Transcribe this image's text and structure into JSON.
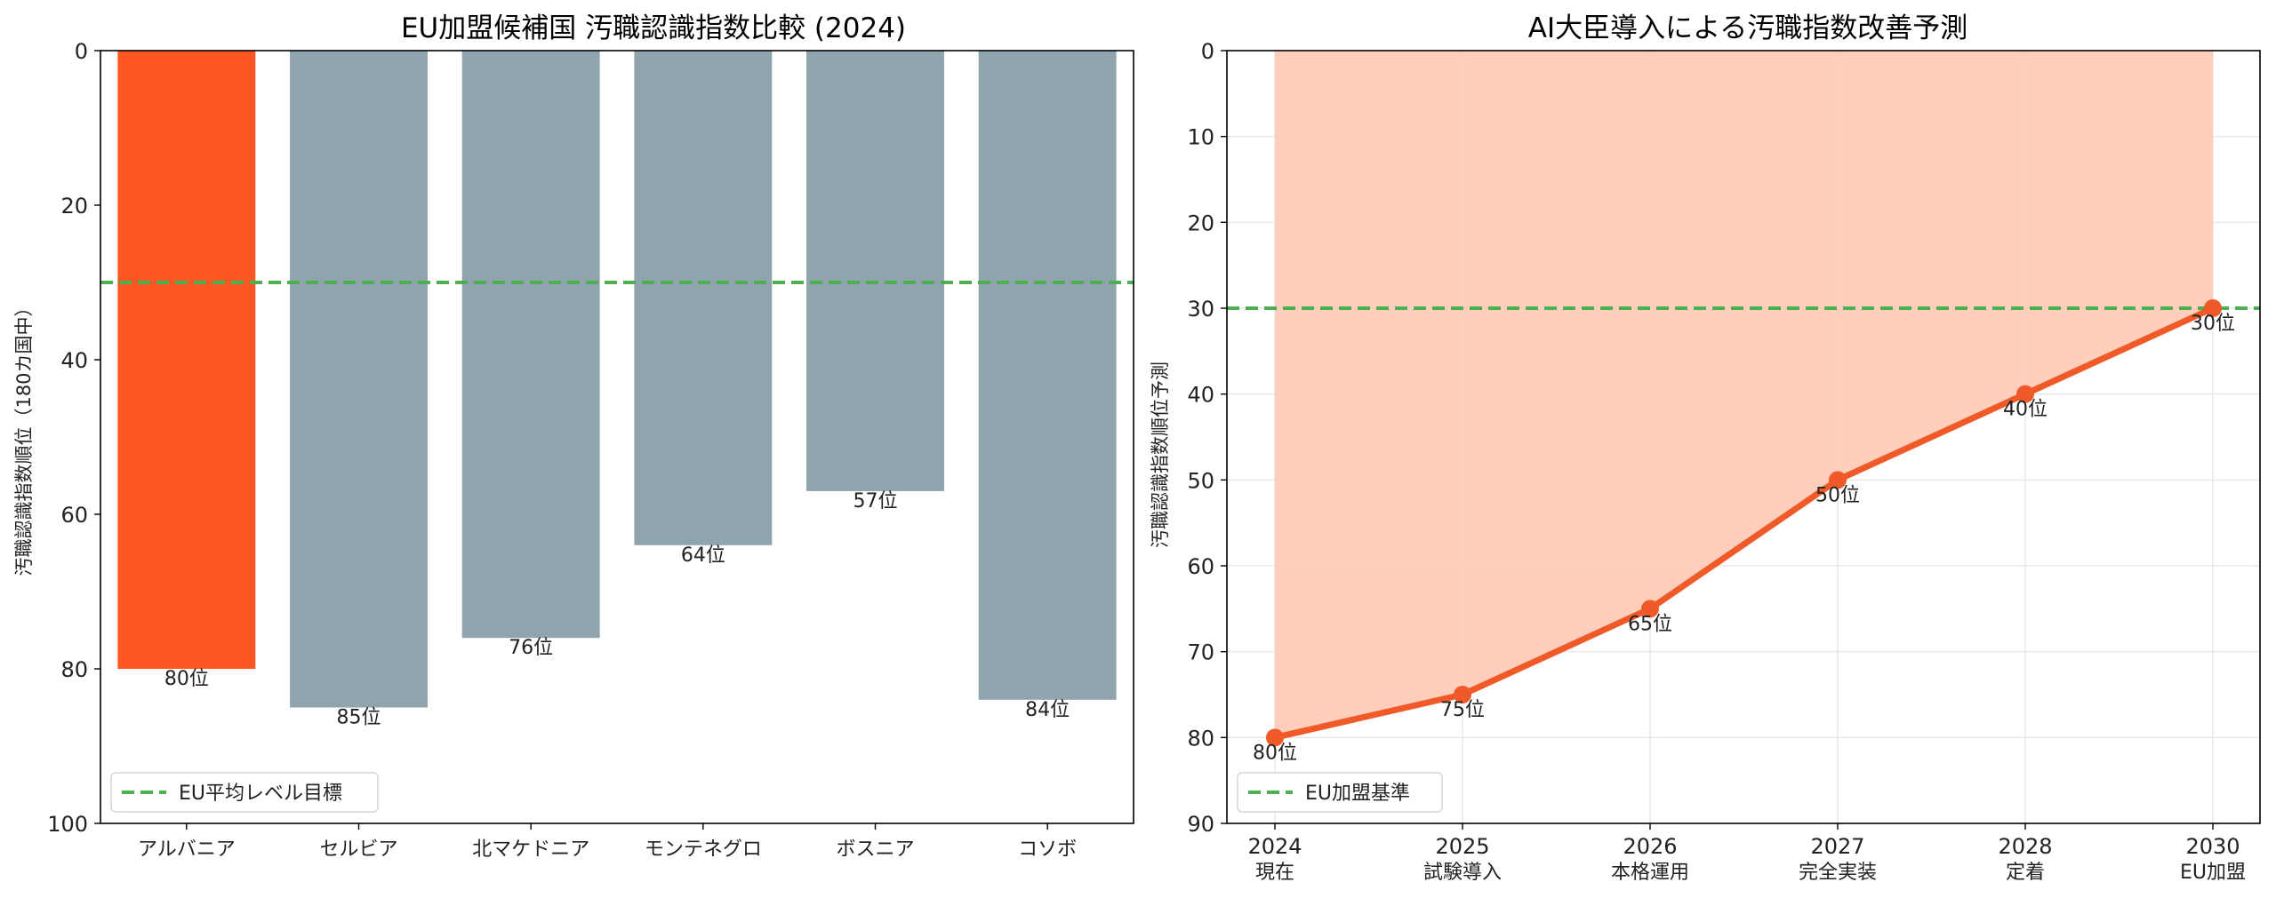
{
  "colors": {
    "highlight": "#FF5722",
    "bar": "#90A4AE",
    "target": "#4CAF50",
    "line": "#F05A28",
    "fill": "#FFCBB9"
  },
  "chart_data": [
    {
      "type": "bar",
      "title": "EU加盟候補国 汚職認識指数比較 (2024)",
      "ylabel": "汚職認識指数順位（180カ国中）",
      "xlabel": "",
      "ylim": [
        100,
        0
      ],
      "y_inverted": true,
      "yticks": [
        0,
        20,
        40,
        60,
        80,
        100
      ],
      "categories": [
        "アルバニア",
        "セルビア",
        "北マケドニア",
        "モンテネグロ",
        "ボスニア",
        "コソボ"
      ],
      "values": [
        80,
        85,
        76,
        64,
        57,
        84
      ],
      "data_labels": [
        "80位",
        "85位",
        "76位",
        "64位",
        "57位",
        "84位"
      ],
      "highlight_index": 0,
      "reference_line": {
        "value": 30,
        "label": "EU平均レベル目標",
        "style": "dashed"
      },
      "legend": {
        "position": "lower-left",
        "entries": [
          "EU平均レベル目標"
        ]
      },
      "grid": false
    },
    {
      "type": "line",
      "title": "AI大臣導入による汚職指数改善予測",
      "ylabel": "汚職認識指数順位予測",
      "xlabel": "",
      "ylim": [
        90,
        0
      ],
      "y_inverted": true,
      "yticks": [
        0,
        10,
        20,
        30,
        40,
        50,
        60,
        70,
        80,
        90
      ],
      "x": [
        "2024",
        "2025",
        "2026",
        "2027",
        "2028",
        "2030"
      ],
      "x_sublabels": [
        "現在",
        "試験導入",
        "本格運用",
        "完全実装",
        "定着",
        "EU加盟"
      ],
      "values": [
        80,
        75,
        65,
        50,
        40,
        30
      ],
      "data_labels": [
        "80位",
        "75位",
        "65位",
        "50位",
        "40位",
        "30位"
      ],
      "area_fill": true,
      "reference_line": {
        "value": 30,
        "label": "EU加盟基準",
        "style": "dashed"
      },
      "legend": {
        "position": "lower-left",
        "entries": [
          "EU加盟基準"
        ]
      },
      "grid": true
    }
  ]
}
